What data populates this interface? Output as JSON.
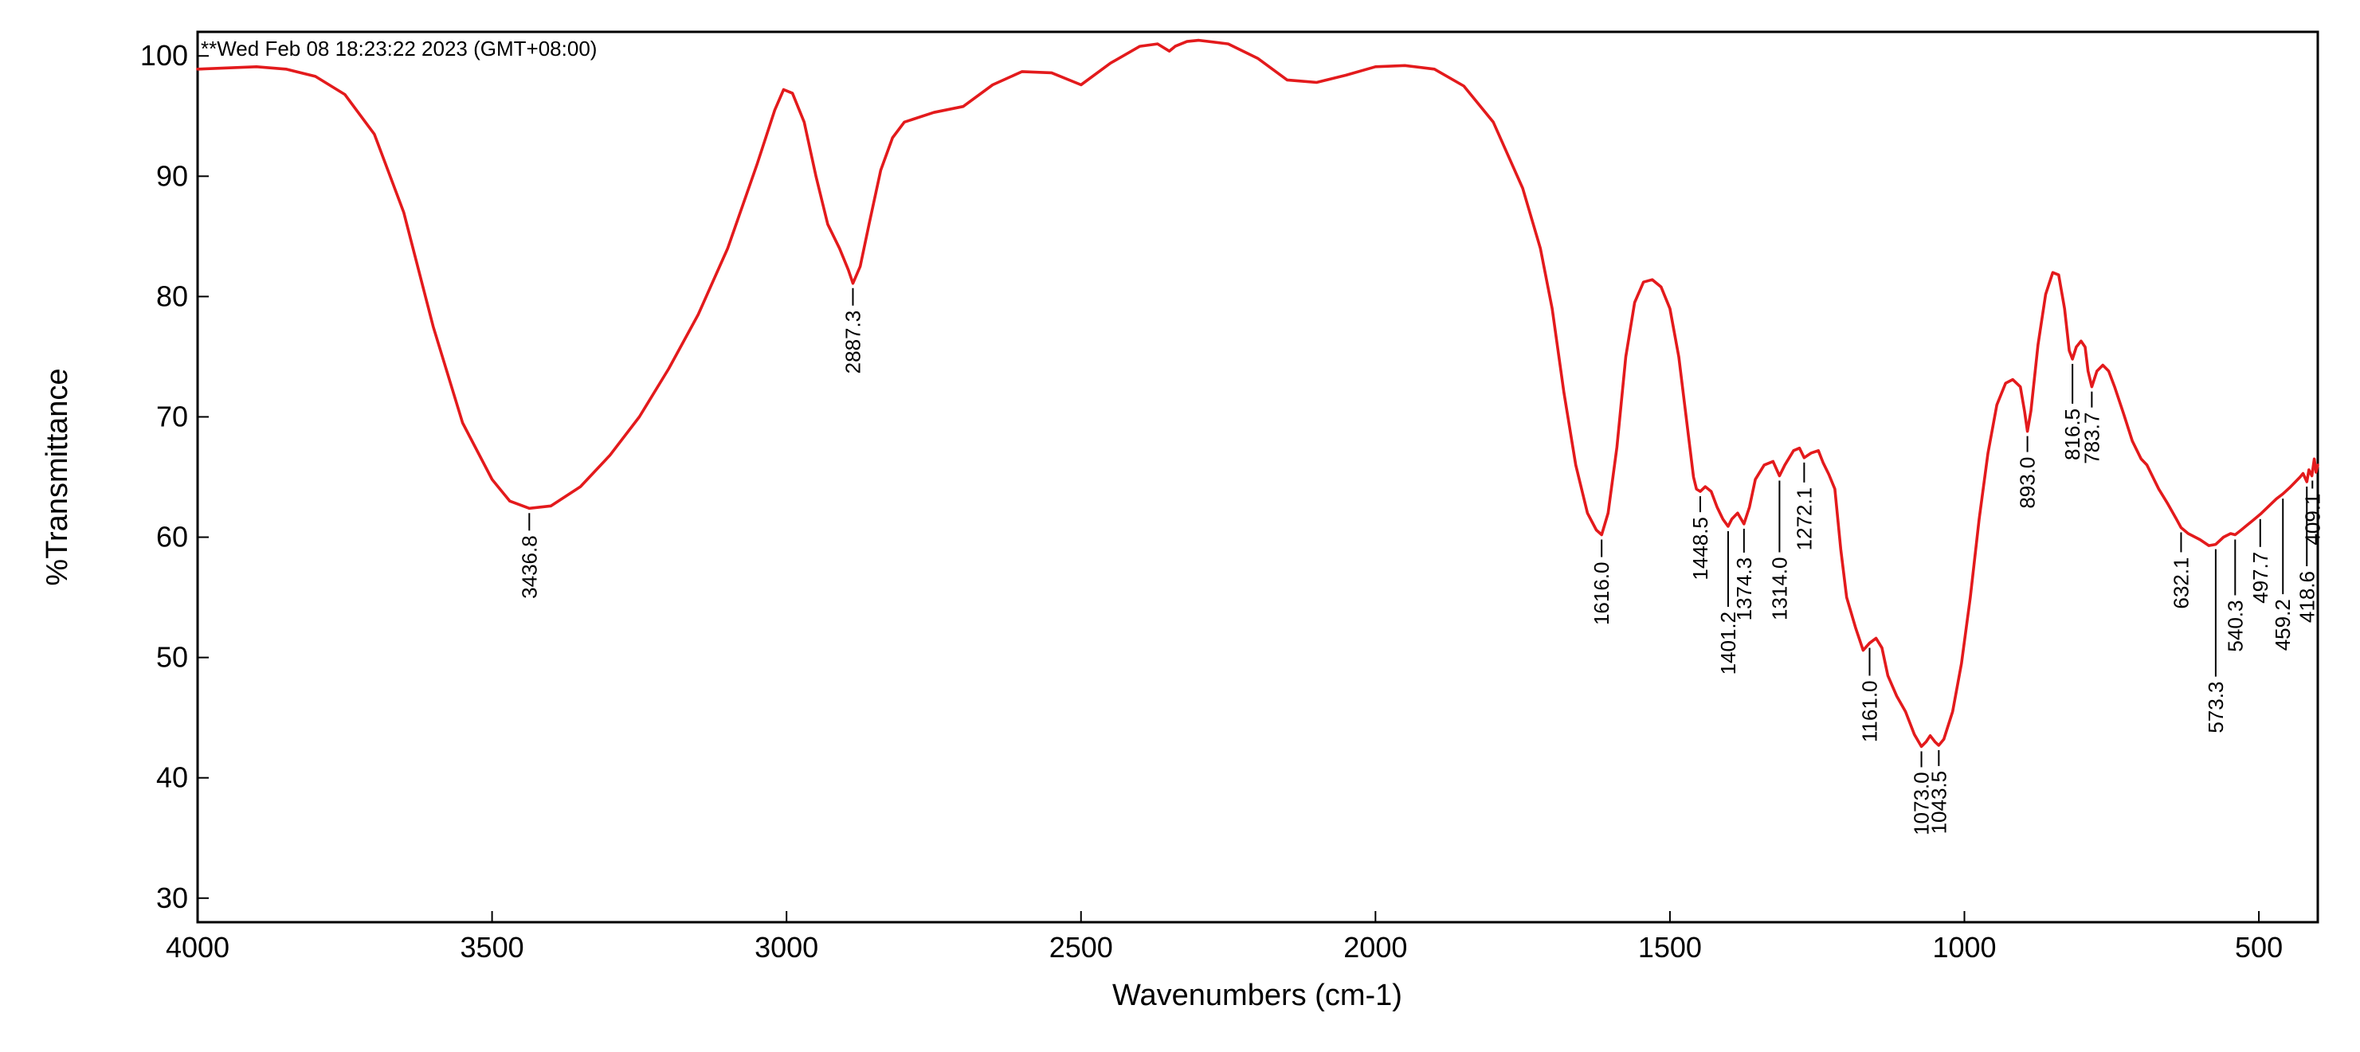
{
  "chart_data": {
    "type": "line",
    "title": "",
    "timestamp": "**Wed Feb 08 18:23:22 2023 (GMT+08:00)",
    "xlabel": "Wavenumbers (cm-1)",
    "ylabel": "%Transmittance",
    "xlim": [
      4000,
      400
    ],
    "ylim": [
      28,
      102
    ],
    "x_reversed": true,
    "grid": false,
    "legend": "none",
    "line_color": "#e31a1c",
    "x_ticks": [
      {
        "value": 4000,
        "label": "4000"
      },
      {
        "value": 3500,
        "label": "3500"
      },
      {
        "value": 3000,
        "label": "3000"
      },
      {
        "value": 2500,
        "label": "2500"
      },
      {
        "value": 2000,
        "label": "2000"
      },
      {
        "value": 1500,
        "label": "1500"
      },
      {
        "value": 1000,
        "label": "1000"
      },
      {
        "value": 500,
        "label": "500"
      }
    ],
    "y_ticks": [
      {
        "value": 100,
        "label": "100"
      },
      {
        "value": 90,
        "label": "90"
      },
      {
        "value": 80,
        "label": "80"
      },
      {
        "value": 70,
        "label": "70"
      },
      {
        "value": 60,
        "label": "60"
      },
      {
        "value": 50,
        "label": "50"
      },
      {
        "value": 40,
        "label": "40"
      },
      {
        "value": 30,
        "label": "30"
      }
    ],
    "series": [
      {
        "points": [
          [
            4000,
            98.9
          ],
          [
            3900,
            99.1
          ],
          [
            3850,
            98.9
          ],
          [
            3800,
            98.3
          ],
          [
            3750,
            96.8
          ],
          [
            3700,
            93.5
          ],
          [
            3650,
            87.0
          ],
          [
            3600,
            77.5
          ],
          [
            3550,
            69.5
          ],
          [
            3500,
            64.8
          ],
          [
            3470,
            63.0
          ],
          [
            3436.8,
            62.4
          ],
          [
            3400,
            62.6
          ],
          [
            3350,
            64.2
          ],
          [
            3300,
            66.8
          ],
          [
            3250,
            70.0
          ],
          [
            3200,
            74.0
          ],
          [
            3150,
            78.5
          ],
          [
            3100,
            84.0
          ],
          [
            3050,
            91.0
          ],
          [
            3020,
            95.5
          ],
          [
            3005,
            97.2
          ],
          [
            2990,
            96.9
          ],
          [
            2970,
            94.5
          ],
          [
            2950,
            90.0
          ],
          [
            2930,
            86.0
          ],
          [
            2910,
            84.0
          ],
          [
            2895,
            82.2
          ],
          [
            2887.3,
            81.1
          ],
          [
            2875,
            82.5
          ],
          [
            2860,
            86.0
          ],
          [
            2840,
            90.5
          ],
          [
            2820,
            93.2
          ],
          [
            2800,
            94.5
          ],
          [
            2750,
            95.3
          ],
          [
            2700,
            95.8
          ],
          [
            2650,
            97.6
          ],
          [
            2600,
            98.7
          ],
          [
            2550,
            98.6
          ],
          [
            2500,
            97.6
          ],
          [
            2450,
            99.4
          ],
          [
            2400,
            100.8
          ],
          [
            2370,
            101.0
          ],
          [
            2350,
            100.4
          ],
          [
            2340,
            100.8
          ],
          [
            2320,
            101.2
          ],
          [
            2300,
            101.3
          ],
          [
            2250,
            101.0
          ],
          [
            2200,
            99.8
          ],
          [
            2150,
            98.0
          ],
          [
            2100,
            97.8
          ],
          [
            2050,
            98.4
          ],
          [
            2000,
            99.1
          ],
          [
            1950,
            99.2
          ],
          [
            1900,
            98.9
          ],
          [
            1850,
            97.5
          ],
          [
            1800,
            94.5
          ],
          [
            1750,
            89.0
          ],
          [
            1720,
            84.0
          ],
          [
            1700,
            79.0
          ],
          [
            1680,
            72.0
          ],
          [
            1660,
            66.0
          ],
          [
            1640,
            62.0
          ],
          [
            1625,
            60.6
          ],
          [
            1616,
            60.2
          ],
          [
            1605,
            62.0
          ],
          [
            1590,
            67.5
          ],
          [
            1575,
            75.0
          ],
          [
            1560,
            79.5
          ],
          [
            1545,
            81.2
          ],
          [
            1530,
            81.4
          ],
          [
            1515,
            80.8
          ],
          [
            1500,
            79.0
          ],
          [
            1485,
            75.0
          ],
          [
            1470,
            69.0
          ],
          [
            1460,
            65.0
          ],
          [
            1455,
            64.0
          ],
          [
            1448.5,
            63.8
          ],
          [
            1440,
            64.2
          ],
          [
            1430,
            63.8
          ],
          [
            1420,
            62.5
          ],
          [
            1410,
            61.5
          ],
          [
            1401.2,
            60.9
          ],
          [
            1395,
            61.5
          ],
          [
            1385,
            62.0
          ],
          [
            1374.3,
            61.1
          ],
          [
            1365,
            62.5
          ],
          [
            1355,
            64.8
          ],
          [
            1340,
            66.0
          ],
          [
            1325,
            66.3
          ],
          [
            1314,
            65.1
          ],
          [
            1305,
            66.0
          ],
          [
            1290,
            67.2
          ],
          [
            1280,
            67.4
          ],
          [
            1272.1,
            66.6
          ],
          [
            1260,
            67.0
          ],
          [
            1248,
            67.2
          ],
          [
            1240,
            66.2
          ],
          [
            1230,
            65.2
          ],
          [
            1220,
            64.0
          ],
          [
            1210,
            59.0
          ],
          [
            1200,
            55.0
          ],
          [
            1185,
            52.5
          ],
          [
            1172,
            50.6
          ],
          [
            1161,
            51.2
          ],
          [
            1150,
            51.6
          ],
          [
            1140,
            50.8
          ],
          [
            1130,
            48.5
          ],
          [
            1115,
            46.8
          ],
          [
            1100,
            45.5
          ],
          [
            1085,
            43.6
          ],
          [
            1073,
            42.6
          ],
          [
            1065,
            43.0
          ],
          [
            1058,
            43.5
          ],
          [
            1050,
            43.0
          ],
          [
            1043.5,
            42.7
          ],
          [
            1035,
            43.2
          ],
          [
            1020,
            45.5
          ],
          [
            1005,
            49.5
          ],
          [
            990,
            55.0
          ],
          [
            975,
            61.5
          ],
          [
            960,
            67.0
          ],
          [
            945,
            71.0
          ],
          [
            930,
            72.8
          ],
          [
            918,
            73.1
          ],
          [
            905,
            72.5
          ],
          [
            898,
            70.5
          ],
          [
            893,
            68.8
          ],
          [
            887,
            70.5
          ],
          [
            875,
            76.0
          ],
          [
            862,
            80.2
          ],
          [
            850,
            82.0
          ],
          [
            840,
            81.8
          ],
          [
            830,
            79.0
          ],
          [
            822,
            75.5
          ],
          [
            816.5,
            74.8
          ],
          [
            810,
            75.8
          ],
          [
            802,
            76.3
          ],
          [
            795,
            75.8
          ],
          [
            790,
            73.8
          ],
          [
            783.7,
            72.5
          ],
          [
            775,
            73.8
          ],
          [
            765,
            74.3
          ],
          [
            755,
            73.8
          ],
          [
            745,
            72.5
          ],
          [
            730,
            70.3
          ],
          [
            715,
            68.0
          ],
          [
            700,
            66.5
          ],
          [
            690,
            66.0
          ],
          [
            680,
            65.0
          ],
          [
            670,
            64.0
          ],
          [
            655,
            62.8
          ],
          [
            640,
            61.5
          ],
          [
            632.1,
            60.8
          ],
          [
            620,
            60.3
          ],
          [
            600,
            59.8
          ],
          [
            585,
            59.3
          ],
          [
            573.3,
            59.4
          ],
          [
            560,
            60.0
          ],
          [
            548,
            60.3
          ],
          [
            540.3,
            60.2
          ],
          [
            530,
            60.6
          ],
          [
            520,
            61.0
          ],
          [
            510,
            61.4
          ],
          [
            497.7,
            61.9
          ],
          [
            485,
            62.5
          ],
          [
            470,
            63.2
          ],
          [
            459.2,
            63.6
          ],
          [
            448,
            64.1
          ],
          [
            440,
            64.5
          ],
          [
            430,
            65.0
          ],
          [
            425,
            65.3
          ],
          [
            418.6,
            64.6
          ],
          [
            415,
            65.6
          ],
          [
            410,
            65.1
          ],
          [
            406,
            66.5
          ],
          [
            403,
            65.4
          ],
          [
            400,
            66.0
          ]
        ]
      }
    ],
    "peak_labels": [
      {
        "label": "3436.8",
        "x": 3436.8,
        "y": 62.4
      },
      {
        "label": "2887.3",
        "x": 2887.3,
        "y": 81.1
      },
      {
        "label": "1616.0",
        "x": 1616.0,
        "y": 60.2
      },
      {
        "label": "1448.5",
        "x": 1448.5,
        "y": 63.8
      },
      {
        "label": "1401.2",
        "x": 1401.2,
        "y": 60.9
      },
      {
        "label": "1374.3",
        "x": 1374.3,
        "y": 61.1
      },
      {
        "label": "1314.0",
        "x": 1314.0,
        "y": 65.1
      },
      {
        "label": "1272.1",
        "x": 1272.1,
        "y": 66.6
      },
      {
        "label": "1161.0",
        "x": 1161.0,
        "y": 51.2
      },
      {
        "label": "1073.0",
        "x": 1073.0,
        "y": 42.6
      },
      {
        "label": "1043.5",
        "x": 1043.5,
        "y": 42.7
      },
      {
        "label": "893.0",
        "x": 893.0,
        "y": 68.8
      },
      {
        "label": "816.5",
        "x": 816.5,
        "y": 74.8
      },
      {
        "label": "783.7",
        "x": 783.7,
        "y": 72.5
      },
      {
        "label": "632.1",
        "x": 632.1,
        "y": 60.8
      },
      {
        "label": "573.3",
        "x": 573.3,
        "y": 59.4
      },
      {
        "label": "540.3",
        "x": 540.3,
        "y": 60.2
      },
      {
        "label": "497.7",
        "x": 497.7,
        "y": 61.9
      },
      {
        "label": "459.2",
        "x": 459.2,
        "y": 63.6
      },
      {
        "label": "418.6",
        "x": 418.6,
        "y": 64.6
      },
      {
        "label": "409.1",
        "x": 409.1,
        "y": 65.1
      }
    ]
  }
}
